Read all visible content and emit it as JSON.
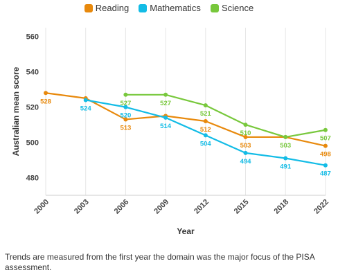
{
  "chart_data": {
    "type": "line",
    "title": "",
    "xlabel": "Year",
    "ylabel": "Australian mean score",
    "categories": [
      "2000",
      "2003",
      "2006",
      "2009",
      "2012",
      "2015",
      "2018",
      "2022"
    ],
    "y_ticks": [
      480,
      500,
      520,
      540,
      560
    ],
    "ylim": [
      470,
      565
    ],
    "grid": "vertical",
    "legend_position": "top",
    "series": [
      {
        "name": "Reading",
        "color": "#E8890C",
        "values": [
          528,
          525,
          513,
          515,
          512,
          503,
          503,
          498
        ],
        "labels": [
          "528",
          "",
          "513",
          "",
          "512",
          "503",
          "",
          "498"
        ]
      },
      {
        "name": "Mathematics",
        "color": "#13BCE6",
        "values": [
          null,
          524,
          520,
          514,
          504,
          494,
          491,
          487
        ],
        "labels": [
          "",
          "524",
          "520",
          "514",
          "504",
          "494",
          "491",
          "487"
        ]
      },
      {
        "name": "Science",
        "color": "#78C83C",
        "values": [
          null,
          null,
          527,
          527,
          521,
          510,
          503,
          507
        ],
        "labels": [
          "",
          "",
          "527",
          "527",
          "521",
          "510",
          "503",
          "507"
        ]
      }
    ]
  },
  "footnote": "Trends are measured from the first year the domain was the major focus of the PISA assessment."
}
